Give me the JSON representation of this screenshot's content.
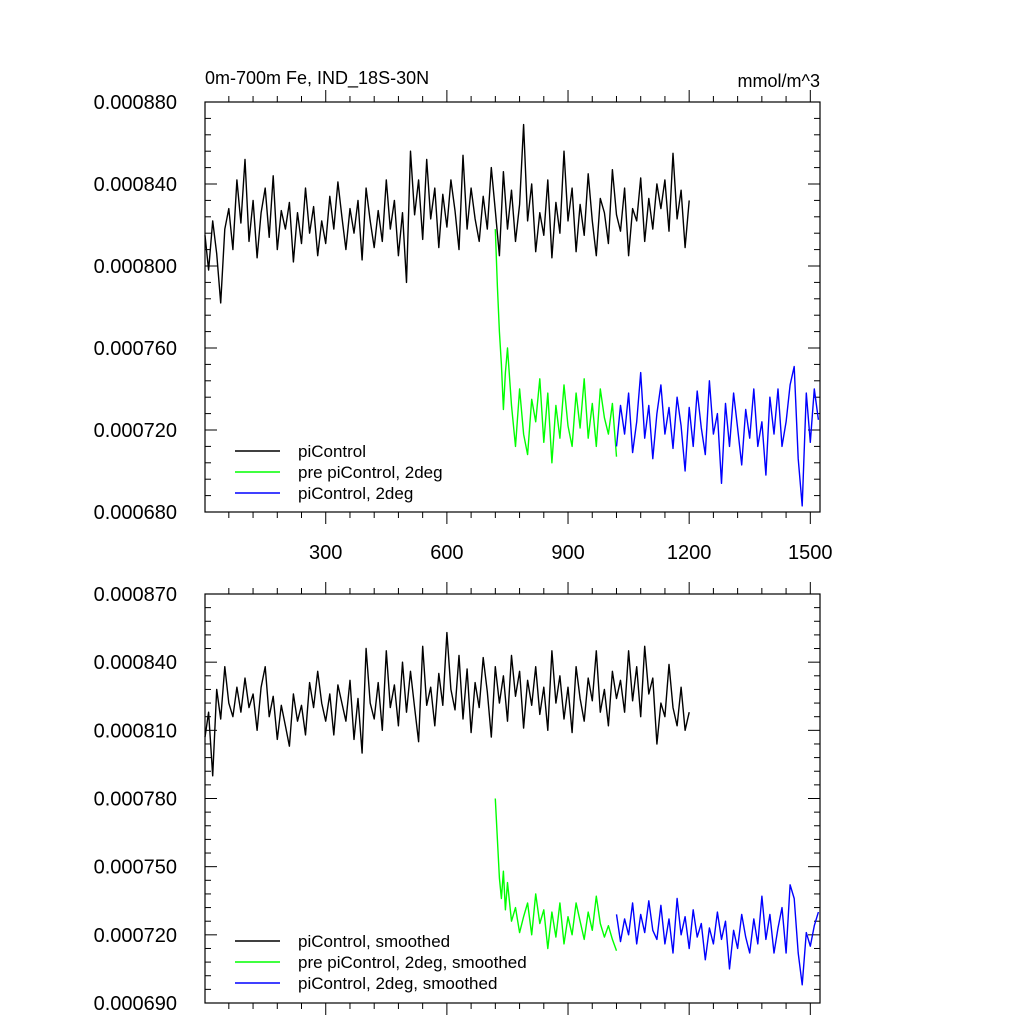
{
  "figure": {
    "title": "0m-700m Fe, IND_18S-30N",
    "units": "mmol/m^3"
  },
  "chart_data": [
    {
      "type": "line",
      "title": "0m-700m Fe, IND_18S-30N",
      "units": "mmol/m^3",
      "xlim": [
        1,
        1524
      ],
      "ylim": [
        0.00068,
        0.00088
      ],
      "x_ticks": [
        300,
        600,
        900,
        1200,
        1500
      ],
      "x_tick_labels": [
        "300",
        "600",
        "900",
        "1200",
        "1500"
      ],
      "y_ticks": [
        0.00068,
        0.00072,
        0.00076,
        0.0008,
        0.00084,
        0.00088
      ],
      "y_tick_labels": [
        "0.000680",
        "0.000720",
        "0.000760",
        "0.000800",
        "0.000840",
        "0.000880"
      ],
      "legend_position": "bottom-left",
      "grid": false,
      "series": [
        {
          "name": "piControl",
          "color": "#000000",
          "x": [
            1,
            10,
            20,
            30,
            40,
            50,
            60,
            70,
            80,
            90,
            100,
            110,
            120,
            130,
            140,
            150,
            160,
            170,
            180,
            190,
            200,
            210,
            220,
            230,
            240,
            250,
            260,
            270,
            280,
            290,
            300,
            310,
            320,
            330,
            340,
            350,
            360,
            370,
            380,
            390,
            400,
            410,
            420,
            430,
            440,
            450,
            460,
            470,
            480,
            490,
            500,
            510,
            520,
            530,
            540,
            550,
            560,
            570,
            580,
            590,
            600,
            610,
            620,
            630,
            640,
            650,
            660,
            670,
            680,
            690,
            700,
            710,
            720,
            730,
            740,
            750,
            760,
            770,
            780,
            790,
            800,
            810,
            820,
            830,
            840,
            850,
            860,
            870,
            880,
            890,
            900,
            910,
            920,
            930,
            940,
            950,
            960,
            970,
            980,
            990,
            1000,
            1010,
            1020,
            1030,
            1040,
            1050,
            1060,
            1070,
            1080,
            1090,
            1100,
            1110,
            1120,
            1130,
            1140,
            1150,
            1160,
            1170,
            1180,
            1190,
            1200
          ],
          "values": [
            0.000815,
            0.000798,
            0.000822,
            0.000806,
            0.000782,
            0.000818,
            0.000828,
            0.000808,
            0.000842,
            0.000821,
            0.000852,
            0.000812,
            0.000832,
            0.000804,
            0.000826,
            0.000838,
            0.000814,
            0.000844,
            0.000808,
            0.000827,
            0.000818,
            0.000831,
            0.000802,
            0.000826,
            0.000811,
            0.000838,
            0.000816,
            0.000829,
            0.000805,
            0.000822,
            0.000811,
            0.000834,
            0.000818,
            0.000841,
            0.000824,
            0.000808,
            0.000828,
            0.000816,
            0.000832,
            0.000803,
            0.000838,
            0.000822,
            0.000809,
            0.000827,
            0.000812,
            0.000842,
            0.000818,
            0.000832,
            0.000805,
            0.000826,
            0.000792,
            0.000856,
            0.000825,
            0.000842,
            0.000813,
            0.000852,
            0.000823,
            0.000838,
            0.000809,
            0.000835,
            0.000819,
            0.000842,
            0.000827,
            0.000808,
            0.000854,
            0.000818,
            0.000838,
            0.000823,
            0.000812,
            0.000834,
            0.000818,
            0.000848,
            0.000827,
            0.000805,
            0.000846,
            0.000818,
            0.000837,
            0.000812,
            0.00083,
            0.000869,
            0.000822,
            0.00084,
            0.000807,
            0.000826,
            0.000815,
            0.000842,
            0.000804,
            0.000831,
            0.000816,
            0.000856,
            0.000822,
            0.000838,
            0.000807,
            0.00083,
            0.000815,
            0.000845,
            0.000822,
            0.000805,
            0.000833,
            0.000826,
            0.000811,
            0.000847,
            0.000825,
            0.000817,
            0.000838,
            0.000805,
            0.000828,
            0.000822,
            0.000843,
            0.000812,
            0.000833,
            0.000818,
            0.00084,
            0.000828,
            0.000842,
            0.000817,
            0.000855,
            0.000823,
            0.000837,
            0.000809,
            0.000832
          ]
        },
        {
          "name": "pre piControl, 2deg",
          "color": "#00ff00",
          "x": [
            720,
            725,
            730,
            735,
            740,
            745,
            750,
            760,
            770,
            780,
            790,
            800,
            810,
            820,
            830,
            840,
            850,
            860,
            870,
            880,
            890,
            900,
            910,
            920,
            930,
            940,
            950,
            960,
            970,
            980,
            990,
            1000,
            1010,
            1020
          ],
          "values": [
            0.000818,
            0.00079,
            0.000768,
            0.000752,
            0.00073,
            0.000748,
            0.00076,
            0.000732,
            0.000712,
            0.00074,
            0.000718,
            0.000708,
            0.000735,
            0.000724,
            0.000745,
            0.000714,
            0.000738,
            0.000704,
            0.000732,
            0.000716,
            0.000742,
            0.000722,
            0.000712,
            0.000738,
            0.000721,
            0.000745,
            0.000716,
            0.000733,
            0.000712,
            0.00074,
            0.000726,
            0.000718,
            0.000733,
            0.000707
          ]
        },
        {
          "name": "piControl, 2deg",
          "color": "#0000ff",
          "x": [
            1020,
            1030,
            1040,
            1050,
            1060,
            1070,
            1080,
            1090,
            1100,
            1110,
            1120,
            1130,
            1140,
            1150,
            1160,
            1170,
            1180,
            1190,
            1200,
            1210,
            1220,
            1230,
            1240,
            1250,
            1260,
            1270,
            1280,
            1290,
            1300,
            1310,
            1320,
            1330,
            1340,
            1350,
            1360,
            1370,
            1380,
            1390,
            1400,
            1410,
            1420,
            1430,
            1440,
            1450,
            1460,
            1470,
            1480,
            1490,
            1500,
            1510,
            1520
          ],
          "values": [
            0.000712,
            0.000732,
            0.000718,
            0.000738,
            0.000709,
            0.000724,
            0.000748,
            0.000716,
            0.000732,
            0.000706,
            0.000728,
            0.000742,
            0.000718,
            0.000731,
            0.000711,
            0.000736,
            0.000722,
            0.0007,
            0.000731,
            0.000712,
            0.000739,
            0.000721,
            0.000708,
            0.000744,
            0.000718,
            0.000728,
            0.000694,
            0.000733,
            0.000712,
            0.000738,
            0.000721,
            0.000703,
            0.00073,
            0.000716,
            0.00074,
            0.000712,
            0.000724,
            0.000698,
            0.000736,
            0.000718,
            0.00074,
            0.000712,
            0.000724,
            0.000742,
            0.000751,
            0.000706,
            0.000683,
            0.000738,
            0.000714,
            0.00074,
            0.000725
          ]
        }
      ]
    },
    {
      "type": "line",
      "title": "",
      "xlim": [
        1,
        1524
      ],
      "ylim": [
        0.00069,
        0.00087
      ],
      "x_ticks": [
        300,
        600,
        900,
        1200,
        1500
      ],
      "x_tick_labels": [],
      "y_ticks": [
        0.00069,
        0.00072,
        0.00075,
        0.00078,
        0.00081,
        0.00084,
        0.00087
      ],
      "y_tick_labels": [
        "0.000690",
        "0.000720",
        "0.000750",
        "0.000780",
        "0.000810",
        "0.000840",
        "0.000870"
      ],
      "legend_position": "bottom-left",
      "grid": false,
      "series": [
        {
          "name": "piControl, smoothed",
          "color": "#000000",
          "x": [
            1,
            10,
            20,
            30,
            40,
            50,
            60,
            70,
            80,
            90,
            100,
            110,
            120,
            130,
            140,
            150,
            160,
            170,
            180,
            190,
            200,
            210,
            220,
            230,
            240,
            250,
            260,
            270,
            280,
            290,
            300,
            310,
            320,
            330,
            340,
            350,
            360,
            370,
            380,
            390,
            400,
            410,
            420,
            430,
            440,
            450,
            460,
            470,
            480,
            490,
            500,
            510,
            520,
            530,
            540,
            550,
            560,
            570,
            580,
            590,
            600,
            610,
            620,
            630,
            640,
            650,
            660,
            670,
            680,
            690,
            700,
            710,
            720,
            730,
            740,
            750,
            760,
            770,
            780,
            790,
            800,
            810,
            820,
            830,
            840,
            850,
            860,
            870,
            880,
            890,
            900,
            910,
            920,
            930,
            940,
            950,
            960,
            970,
            980,
            990,
            1000,
            1010,
            1020,
            1030,
            1040,
            1050,
            1060,
            1070,
            1080,
            1090,
            1100,
            1110,
            1120,
            1130,
            1140,
            1150,
            1160,
            1170,
            1180,
            1190,
            1200
          ],
          "values": [
            0.000807,
            0.000818,
            0.00079,
            0.000828,
            0.000815,
            0.000838,
            0.000822,
            0.000816,
            0.000829,
            0.000818,
            0.000833,
            0.00082,
            0.000826,
            0.00081,
            0.000829,
            0.000838,
            0.000816,
            0.000825,
            0.000806,
            0.000821,
            0.000812,
            0.000803,
            0.000826,
            0.000814,
            0.000821,
            0.000808,
            0.000831,
            0.00082,
            0.000836,
            0.000822,
            0.000814,
            0.000826,
            0.000808,
            0.00083,
            0.000822,
            0.000814,
            0.000832,
            0.000806,
            0.000824,
            0.0008,
            0.000846,
            0.000822,
            0.000815,
            0.000831,
            0.00081,
            0.000845,
            0.00082,
            0.00083,
            0.000812,
            0.00084,
            0.000818,
            0.000836,
            0.00082,
            0.000805,
            0.000847,
            0.000821,
            0.000829,
            0.000812,
            0.000835,
            0.000821,
            0.000853,
            0.000828,
            0.000819,
            0.000843,
            0.000815,
            0.000837,
            0.000809,
            0.000831,
            0.00082,
            0.000842,
            0.000827,
            0.000807,
            0.000838,
            0.000822,
            0.000834,
            0.000814,
            0.000843,
            0.000825,
            0.000836,
            0.000811,
            0.000832,
            0.000821,
            0.000838,
            0.000817,
            0.000829,
            0.00081,
            0.000845,
            0.000822,
            0.000834,
            0.000815,
            0.000829,
            0.000809,
            0.000838,
            0.000824,
            0.000814,
            0.000833,
            0.000823,
            0.000845,
            0.000818,
            0.000828,
            0.000812,
            0.000836,
            0.000824,
            0.000832,
            0.000818,
            0.000845,
            0.000823,
            0.000838,
            0.000816,
            0.000847,
            0.000826,
            0.000833,
            0.000804,
            0.000822,
            0.000816,
            0.000839,
            0.00082,
            0.000812,
            0.000829,
            0.00081,
            0.000818
          ]
        },
        {
          "name": "pre piControl, 2deg, smoothed",
          "color": "#00ff00",
          "x": [
            720,
            725,
            730,
            735,
            740,
            745,
            750,
            760,
            770,
            780,
            790,
            800,
            810,
            820,
            830,
            840,
            850,
            860,
            870,
            880,
            890,
            900,
            910,
            920,
            930,
            940,
            950,
            960,
            970,
            980,
            990,
            1000,
            1010,
            1020
          ],
          "values": [
            0.00078,
            0.000762,
            0.000745,
            0.000736,
            0.000748,
            0.000731,
            0.000743,
            0.000726,
            0.000732,
            0.000721,
            0.000728,
            0.000734,
            0.00072,
            0.000738,
            0.000725,
            0.000731,
            0.000714,
            0.00073,
            0.000719,
            0.000734,
            0.000716,
            0.000728,
            0.00072,
            0.000734,
            0.000726,
            0.000718,
            0.00073,
            0.000722,
            0.000737,
            0.000725,
            0.000719,
            0.000724,
            0.000718,
            0.000713
          ]
        },
        {
          "name": "piControl, 2deg, smoothed",
          "color": "#0000ff",
          "x": [
            1020,
            1030,
            1040,
            1050,
            1060,
            1070,
            1080,
            1090,
            1100,
            1110,
            1120,
            1130,
            1140,
            1150,
            1160,
            1170,
            1180,
            1190,
            1200,
            1210,
            1220,
            1230,
            1240,
            1250,
            1260,
            1270,
            1280,
            1290,
            1300,
            1310,
            1320,
            1330,
            1340,
            1350,
            1360,
            1370,
            1380,
            1390,
            1400,
            1410,
            1420,
            1430,
            1440,
            1450,
            1460,
            1470,
            1480,
            1490,
            1500,
            1510,
            1520
          ],
          "values": [
            0.000729,
            0.000717,
            0.000727,
            0.00072,
            0.000734,
            0.000716,
            0.000729,
            0.000721,
            0.000735,
            0.000722,
            0.000718,
            0.000733,
            0.000716,
            0.000727,
            0.000712,
            0.000736,
            0.00072,
            0.000728,
            0.000714,
            0.000731,
            0.000719,
            0.000725,
            0.000709,
            0.000723,
            0.000716,
            0.00073,
            0.000718,
            0.000726,
            0.000705,
            0.000722,
            0.000714,
            0.000729,
            0.000719,
            0.000712,
            0.000727,
            0.000716,
            0.000737,
            0.000718,
            0.000729,
            0.000712,
            0.000723,
            0.000732,
            0.000712,
            0.000742,
            0.000736,
            0.000712,
            0.000698,
            0.000721,
            0.000715,
            0.000724,
            0.00073
          ]
        }
      ]
    }
  ]
}
